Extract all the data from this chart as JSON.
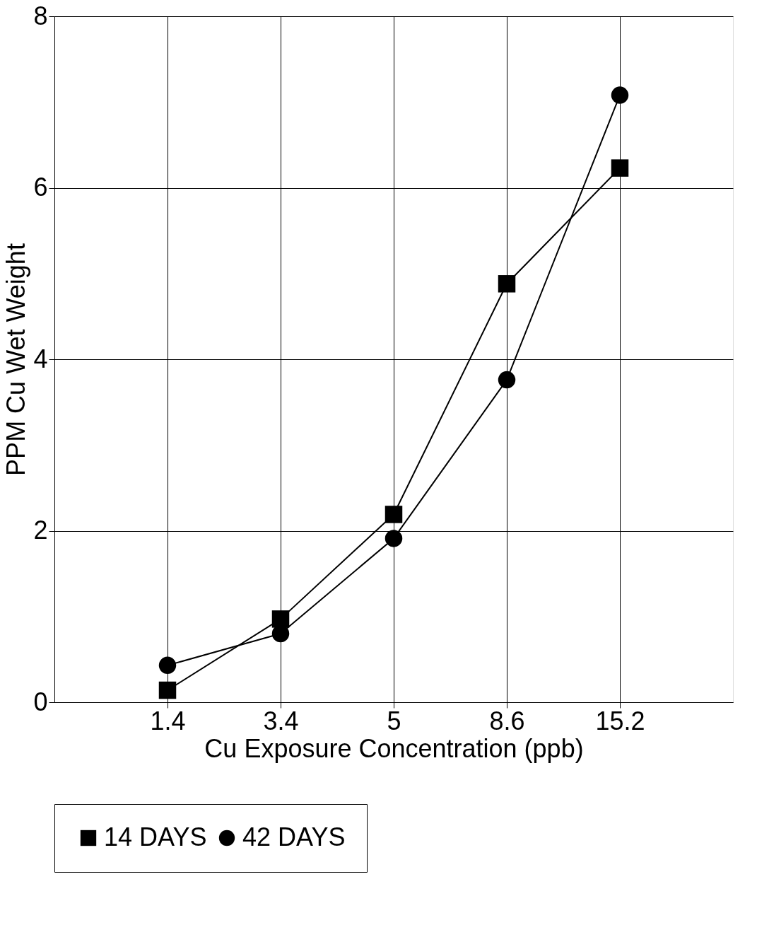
{
  "chart_data": {
    "type": "line",
    "xlabel": "Cu Exposure Concentration (ppb)",
    "ylabel": "PPM Cu Wet Weight",
    "categories": [
      "1.4",
      "3.4",
      "5",
      "8.6",
      "15.2"
    ],
    "series": [
      {
        "name": "14 DAYS",
        "color": "#000000",
        "marker": "square",
        "values": [
          0.14,
          0.97,
          2.19,
          4.88,
          6.23
        ]
      },
      {
        "name": "42 DAYS",
        "color": "#000000",
        "marker": "circle",
        "values": [
          0.43,
          0.8,
          1.91,
          3.76,
          7.08
        ]
      }
    ],
    "ylim": [
      0,
      8
    ],
    "yticks": [
      0,
      2,
      4,
      6,
      8
    ],
    "grid": true,
    "legend": "bottom",
    "line_style": "solid"
  }
}
